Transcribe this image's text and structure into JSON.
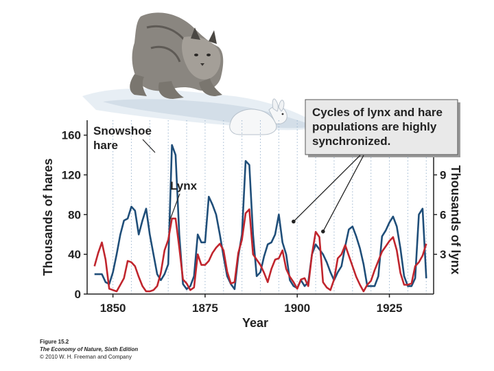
{
  "chart_data": {
    "type": "line",
    "title": "",
    "xlabel": "Year",
    "ylabel": "Thousands of hares",
    "y2label": "Thousands of lynx",
    "xlim": [
      1843,
      1937
    ],
    "ylim": [
      0,
      175
    ],
    "y2lim": [
      0,
      13.125
    ],
    "xticks": [
      1850,
      1875,
      1900,
      1925
    ],
    "yticks": [
      0,
      40,
      80,
      120,
      160
    ],
    "y2ticks": [
      3,
      6,
      9
    ],
    "grid": "vertical dotted",
    "series": [
      {
        "name": "Snowshoe hare",
        "label_lines": [
          "Snowshoe",
          "hare"
        ],
        "axis": "left",
        "color": "#1f4e79",
        "x": [
          1845,
          1846,
          1847,
          1848,
          1849,
          1850,
          1851,
          1852,
          1853,
          1854,
          1855,
          1856,
          1857,
          1858,
          1859,
          1860,
          1861,
          1862,
          1863,
          1864,
          1865,
          1866,
          1867,
          1868,
          1869,
          1870,
          1871,
          1872,
          1873,
          1874,
          1875,
          1876,
          1877,
          1878,
          1879,
          1880,
          1881,
          1882,
          1883,
          1884,
          1885,
          1886,
          1887,
          1888,
          1889,
          1890,
          1891,
          1892,
          1893,
          1894,
          1895,
          1896,
          1897,
          1898,
          1899,
          1900,
          1901,
          1902,
          1903,
          1904,
          1905,
          1906,
          1907,
          1908,
          1909,
          1910,
          1911,
          1912,
          1913,
          1914,
          1915,
          1916,
          1917,
          1918,
          1919,
          1920,
          1921,
          1922,
          1923,
          1924,
          1925,
          1926,
          1927,
          1928,
          1929,
          1930,
          1931,
          1932,
          1933,
          1934,
          1935
        ],
        "values": [
          20,
          20,
          20,
          12,
          10,
          22,
          40,
          60,
          74,
          76,
          88,
          84,
          60,
          74,
          86,
          60,
          40,
          20,
          14,
          20,
          30,
          150,
          140,
          60,
          10,
          5,
          8,
          18,
          60,
          52,
          52,
          98,
          90,
          80,
          60,
          38,
          18,
          10,
          5,
          38,
          60,
          134,
          130,
          60,
          18,
          22,
          38,
          50,
          52,
          60,
          80,
          52,
          40,
          14,
          8,
          6,
          14,
          8,
          12,
          40,
          50,
          45,
          40,
          32,
          22,
          14,
          22,
          28,
          48,
          65,
          68,
          58,
          46,
          30,
          8,
          8,
          8,
          18,
          58,
          64,
          72,
          78,
          68,
          46,
          18,
          8,
          8,
          16,
          80,
          86,
          16
        ]
      },
      {
        "name": "Lynx",
        "label_lines": [
          "Lynx"
        ],
        "axis": "right",
        "color": "#c0252d",
        "x": [
          1845,
          1846,
          1847,
          1848,
          1849,
          1850,
          1851,
          1852,
          1853,
          1854,
          1855,
          1856,
          1857,
          1858,
          1859,
          1860,
          1861,
          1862,
          1863,
          1864,
          1865,
          1866,
          1867,
          1868,
          1869,
          1870,
          1871,
          1872,
          1873,
          1874,
          1875,
          1876,
          1877,
          1878,
          1879,
          1880,
          1881,
          1882,
          1883,
          1884,
          1885,
          1886,
          1887,
          1888,
          1889,
          1890,
          1891,
          1892,
          1893,
          1894,
          1895,
          1896,
          1897,
          1898,
          1899,
          1900,
          1901,
          1902,
          1903,
          1904,
          1905,
          1906,
          1907,
          1908,
          1909,
          1910,
          1911,
          1912,
          1913,
          1914,
          1915,
          1916,
          1917,
          1918,
          1919,
          1920,
          1921,
          1922,
          1923,
          1924,
          1925,
          1926,
          1927,
          1928,
          1929,
          1930,
          1931,
          1932,
          1933,
          1934,
          1935
        ],
        "values": [
          2.1,
          3.1,
          3.9,
          2.6,
          0.4,
          0.3,
          0.2,
          0.7,
          1.2,
          2.5,
          2.4,
          2.1,
          1.3,
          0.6,
          0.2,
          0.2,
          0.3,
          0.6,
          1.6,
          3.3,
          4.1,
          5.7,
          5.7,
          3.5,
          1.1,
          0.8,
          0.3,
          0.5,
          3.0,
          2.2,
          2.2,
          2.5,
          3.1,
          3.5,
          3.8,
          3.3,
          1.7,
          0.8,
          0.9,
          3.1,
          4.1,
          6.1,
          6.4,
          3.0,
          2.6,
          2.2,
          1.6,
          0.9,
          1.9,
          2.6,
          2.7,
          3.3,
          1.9,
          1.3,
          0.9,
          0.4,
          1.1,
          1.2,
          0.6,
          3.0,
          4.7,
          4.3,
          0.9,
          0.5,
          0.3,
          1.1,
          2.7,
          3.0,
          3.7,
          2.9,
          2.1,
          1.3,
          0.7,
          0.2,
          0.7,
          1.0,
          1.8,
          2.5,
          3.2,
          3.6,
          4.0,
          4.3,
          3.3,
          1.6,
          0.7,
          0.7,
          0.8,
          2.1,
          2.4,
          2.9,
          3.8
        ]
      }
    ],
    "annotation": {
      "lines": [
        "Cycles of lynx and hare",
        "populations are highly",
        "synchronized."
      ],
      "targets": [
        {
          "x": 1899,
          "y": 73
        },
        {
          "x": 1907,
          "y": 63
        }
      ]
    }
  },
  "caption": {
    "figure": "Figure 15.2",
    "book": "The Economy of Nature",
    "edition": ", Sixth Edition",
    "copyright": "© 2010 W. H. Freeman and Company"
  }
}
